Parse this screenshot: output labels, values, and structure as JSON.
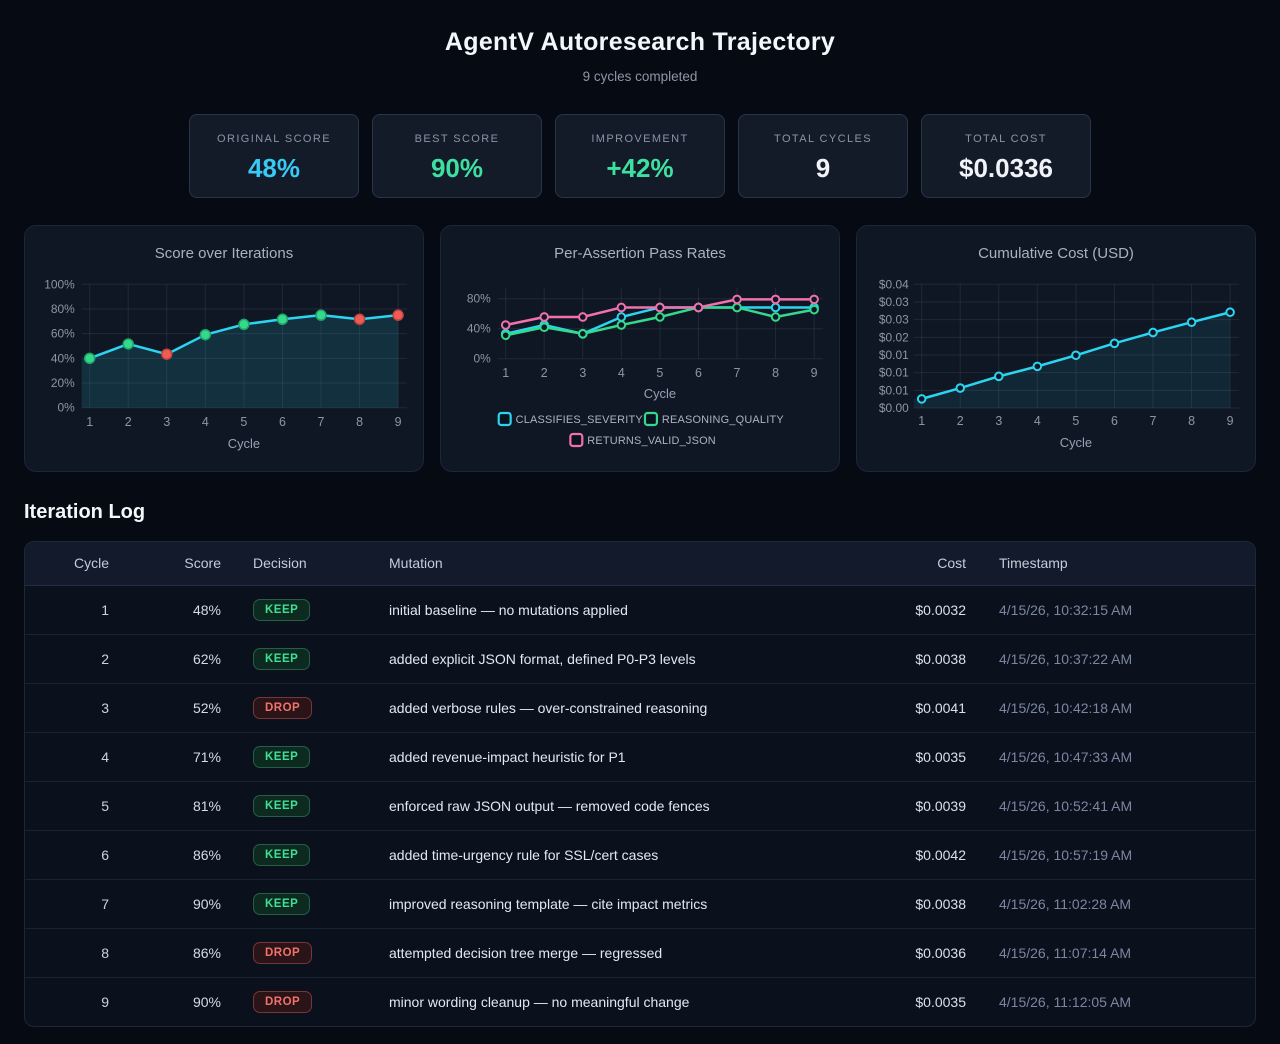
{
  "header": {
    "title": "AgentV Autoresearch Trajectory",
    "subtitle": "9 cycles completed"
  },
  "stats": [
    {
      "label": "ORIGINAL SCORE",
      "value": "48%",
      "color": "cyan"
    },
    {
      "label": "BEST SCORE",
      "value": "90%",
      "color": "green"
    },
    {
      "label": "IMPROVEMENT",
      "value": "+42%",
      "color": "green"
    },
    {
      "label": "TOTAL CYCLES",
      "value": "9",
      "color": "white"
    },
    {
      "label": "TOTAL COST",
      "value": "$0.0336",
      "color": "white"
    }
  ],
  "colors": {
    "cyan": "#2bd5f0",
    "green": "#35d98b",
    "red": "#ef5c55",
    "pink": "#f170ae",
    "keep_marker_edge": "#1fa469",
    "drop_marker_edge": "#c4423c",
    "grid": "rgba(141,151,167,0.14)",
    "axis_text": "#8d96a6",
    "panel_bg": "#0f1724"
  },
  "chart_data": [
    {
      "type": "line",
      "title": "Score over Iterations",
      "xlabel": "Cycle",
      "x": [
        1,
        2,
        3,
        4,
        5,
        6,
        7,
        8,
        9
      ],
      "ytick_labels": [
        "100%",
        "80%",
        "60%",
        "40%",
        "20%",
        "0%"
      ],
      "ylim": [
        0,
        120
      ],
      "area": true,
      "decisions": [
        "keep",
        "keep",
        "drop",
        "keep",
        "keep",
        "keep",
        "keep",
        "drop",
        "drop"
      ],
      "series": [
        {
          "name": "Score",
          "color": "#2bd5f0",
          "values": [
            48,
            62,
            52,
            71,
            81,
            86,
            90,
            86,
            90
          ]
        }
      ]
    },
    {
      "type": "line",
      "title": "Per-Assertion Pass Rates",
      "xlabel": "Cycle",
      "x": [
        1,
        2,
        3,
        4,
        5,
        6,
        7,
        8,
        9
      ],
      "ytick_labels": [
        "80%",
        "40%",
        "0%"
      ],
      "ylim": [
        0,
        97
      ],
      "legend_position": "bottom",
      "series": [
        {
          "name": "CLASSIFIES_SEVERITY",
          "color": "#2bd5f0",
          "values": [
            34,
            46,
            34,
            57,
            70,
            70,
            70,
            70,
            70
          ]
        },
        {
          "name": "REASONING_QUALITY",
          "color": "#35d98b",
          "values": [
            32,
            43,
            34,
            46,
            57,
            70,
            70,
            57,
            67
          ]
        },
        {
          "name": "RETURNS_VALID_JSON",
          "color": "#f170ae",
          "values": [
            46,
            57,
            57,
            70,
            70,
            70,
            81,
            81,
            81
          ]
        }
      ]
    },
    {
      "type": "line",
      "title": "Cumulative Cost (USD)",
      "xlabel": "Cycle",
      "x": [
        1,
        2,
        3,
        4,
        5,
        6,
        7,
        8,
        9
      ],
      "ytick_labels": [
        "$0.04",
        "$0.03",
        "$0.03",
        "$0.02",
        "$0.01",
        "$0.01",
        "$0.01",
        "$0.00"
      ],
      "ylim": [
        0,
        0.0434
      ],
      "area": true,
      "series": [
        {
          "name": "Cumulative cost",
          "color": "#2bd5f0",
          "values": [
            0.0032,
            0.007,
            0.0111,
            0.0146,
            0.0185,
            0.0227,
            0.0265,
            0.0301,
            0.0336
          ]
        }
      ]
    }
  ],
  "log": {
    "heading": "Iteration Log",
    "columns": [
      "Cycle",
      "Score",
      "Decision",
      "Mutation",
      "Cost",
      "Timestamp"
    ],
    "rows": [
      {
        "cycle": "1",
        "score": "48%",
        "decision": "KEEP",
        "mutation": "initial baseline — no mutations applied",
        "cost": "$0.0032",
        "timestamp": "4/15/26, 10:32:15 AM"
      },
      {
        "cycle": "2",
        "score": "62%",
        "decision": "KEEP",
        "mutation": "added explicit JSON format, defined P0-P3 levels",
        "cost": "$0.0038",
        "timestamp": "4/15/26, 10:37:22 AM"
      },
      {
        "cycle": "3",
        "score": "52%",
        "decision": "DROP",
        "mutation": "added verbose rules — over-constrained reasoning",
        "cost": "$0.0041",
        "timestamp": "4/15/26, 10:42:18 AM"
      },
      {
        "cycle": "4",
        "score": "71%",
        "decision": "KEEP",
        "mutation": "added revenue-impact heuristic for P1",
        "cost": "$0.0035",
        "timestamp": "4/15/26, 10:47:33 AM"
      },
      {
        "cycle": "5",
        "score": "81%",
        "decision": "KEEP",
        "mutation": "enforced raw JSON output — removed code fences",
        "cost": "$0.0039",
        "timestamp": "4/15/26, 10:52:41 AM"
      },
      {
        "cycle": "6",
        "score": "86%",
        "decision": "KEEP",
        "mutation": "added time-urgency rule for SSL/cert cases",
        "cost": "$0.0042",
        "timestamp": "4/15/26, 10:57:19 AM"
      },
      {
        "cycle": "7",
        "score": "90%",
        "decision": "KEEP",
        "mutation": "improved reasoning template — cite impact metrics",
        "cost": "$0.0038",
        "timestamp": "4/15/26, 11:02:28 AM"
      },
      {
        "cycle": "8",
        "score": "86%",
        "decision": "DROP",
        "mutation": "attempted decision tree merge — regressed",
        "cost": "$0.0036",
        "timestamp": "4/15/26, 11:07:14 AM"
      },
      {
        "cycle": "9",
        "score": "90%",
        "decision": "DROP",
        "mutation": "minor wording cleanup — no meaningful change",
        "cost": "$0.0035",
        "timestamp": "4/15/26, 11:12:05 AM"
      }
    ]
  }
}
